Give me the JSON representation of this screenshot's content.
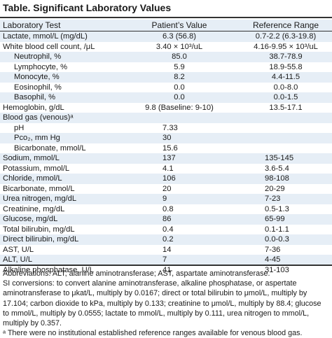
{
  "title": "Table. Significant Laboratory Values",
  "headers": {
    "test": "Laboratory Test",
    "patient": "Patient’s Value",
    "reference": "Reference Range"
  },
  "rows": [
    {
      "test": "Lactate, mmol/L (mg/dL)",
      "value": "6.3 (56.8)",
      "ref": "0.7-2.2 (6.3-19.8)",
      "indent": false
    },
    {
      "test": "White blood cell count, /μL",
      "value": "3.40 × 10³/uL",
      "ref": "4.16-9.95 × 10³/uL",
      "indent": false
    },
    {
      "test": "Neutrophil, %",
      "value": "85.0",
      "ref": "38.7-78.9",
      "indent": true
    },
    {
      "test": "Lymphocyte, %",
      "value": "5.9",
      "ref": "18.9-55.8",
      "indent": true
    },
    {
      "test": "Monocyte, %",
      "value": "8.2",
      "ref": "4.4-11.5",
      "indent": true
    },
    {
      "test": "Eosinophil, %",
      "value": "0.0",
      "ref": "0.0-8.0",
      "indent": true
    },
    {
      "test": "Basophil, %",
      "value": "0.0",
      "ref": "0.0-1.5",
      "indent": true
    },
    {
      "test": "Hemoglobin, g/dL",
      "value": "9.8 (Baseline: 9-10)",
      "ref": "13.5-17.1",
      "indent": false
    },
    {
      "test": "Blood gas (venous)ᵃ",
      "value": "",
      "ref": "",
      "indent": false
    },
    {
      "test": "pH",
      "value": "7.33",
      "ref": "",
      "indent": true
    },
    {
      "test": "Pco₂, mm Hg",
      "value": "30",
      "ref": "",
      "indent": true
    },
    {
      "test": "Bicarbonate, mmol/L",
      "value": "15.6",
      "ref": "",
      "indent": true
    },
    {
      "test": "Sodium, mmol/L",
      "value": "137",
      "ref": "135-145",
      "indent": false
    },
    {
      "test": "Potassium, mmol/L",
      "value": "4.1",
      "ref": "3.6-5.4",
      "indent": false
    },
    {
      "test": "Chloride, mmol/L",
      "value": "106",
      "ref": "98-108",
      "indent": false
    },
    {
      "test": "Bicarbonate, mmol/L",
      "value": "20",
      "ref": "20-29",
      "indent": false
    },
    {
      "test": "Urea nitrogen, mg/dL",
      "value": "9",
      "ref": "7-23",
      "indent": false
    },
    {
      "test": "Creatinine, mg/dL",
      "value": "0.8",
      "ref": "0.5-1.3",
      "indent": false
    },
    {
      "test": "Glucose, mg/dL",
      "value": "86",
      "ref": "65-99",
      "indent": false
    },
    {
      "test": "Total bilirubin, mg/dL",
      "value": "0.4",
      "ref": "0.1-1.1",
      "indent": false
    },
    {
      "test": "Direct bilirubin, mg/dL",
      "value": "0.2",
      "ref": "0.0-0.3",
      "indent": false
    },
    {
      "test": "AST, U/L",
      "value": "14",
      "ref": "7-36",
      "indent": false
    },
    {
      "test": "ALT, U/L",
      "value": "7",
      "ref": "4-45",
      "indent": false
    },
    {
      "test": "Alkaline phosphatase, U/L",
      "value": "41",
      "ref": "31-103",
      "indent": false
    }
  ],
  "footnotes": {
    "abbreviations": "Abbreviations: ALT, alanine aminotransferase; AST, aspartate aminotransferase.",
    "si_conversions": "SI conversions: to convert alanine aminotransferase, alkaline phosphatase, or aspertate aminotransferase to μkat/L, multiply by 0.0167; direct or total bilirubin to μmol/L, multiply by 17.104; carbon dioxide to kPa, multiply by 0.133; creatinine to μmol/L, multiply by 88.4; glucose to mmol/L, multiply by 0.0555; lactate to mmol/L, multiply by 0.111, urea nitrogen to mmol/L, multiply by 0.357.",
    "a": "ᵃ There were no institutional established reference ranges available for venous blood gas."
  }
}
